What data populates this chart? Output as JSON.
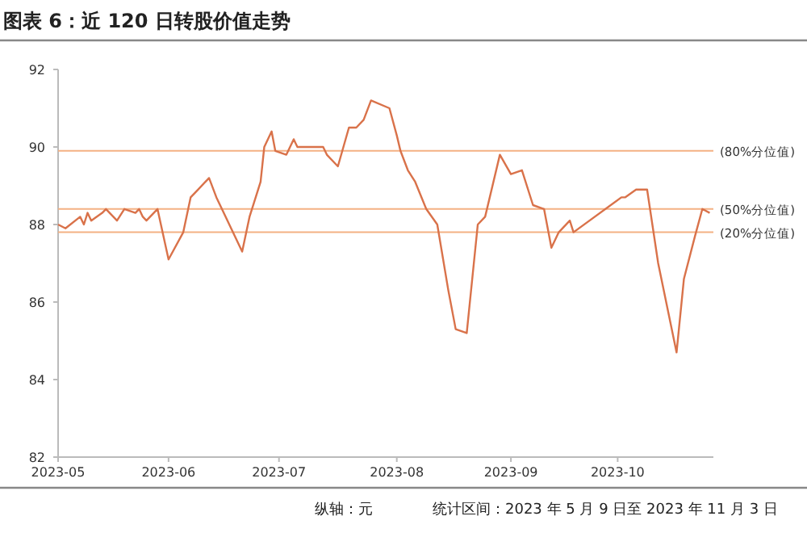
{
  "chart_data": {
    "type": "line",
    "title": "图表 6：近 120 日转股价值走势",
    "x": [
      "2023-05-09",
      "2023-05-11",
      "2023-05-15",
      "2023-05-16",
      "2023-05-17",
      "2023-05-18",
      "2023-05-21",
      "2023-05-22",
      "2023-05-25",
      "2023-05-27",
      "2023-05-30",
      "2023-05-31",
      "2023-06-01",
      "2023-06-02",
      "2023-06-05",
      "2023-06-08",
      "2023-06-12",
      "2023-06-14",
      "2023-06-16",
      "2023-06-19",
      "2023-06-21",
      "2023-06-28",
      "2023-06-30",
      "2023-07-03",
      "2023-07-04",
      "2023-07-06",
      "2023-07-07",
      "2023-07-10",
      "2023-07-12",
      "2023-07-13",
      "2023-07-20",
      "2023-07-21",
      "2023-07-24",
      "2023-07-27",
      "2023-07-29",
      "2023-07-31",
      "2023-08-02",
      "2023-08-07",
      "2023-08-09",
      "2023-08-10",
      "2023-08-12",
      "2023-08-14",
      "2023-08-17",
      "2023-08-20",
      "2023-08-23",
      "2023-08-25",
      "2023-08-28",
      "2023-08-31",
      "2023-09-02",
      "2023-09-06",
      "2023-09-09",
      "2023-09-12",
      "2023-09-15",
      "2023-09-18",
      "2023-09-20",
      "2023-09-22",
      "2023-09-25",
      "2023-09-26",
      "2023-10-09",
      "2023-10-10",
      "2023-10-13",
      "2023-10-16",
      "2023-10-19",
      "2023-10-24",
      "2023-10-26",
      "2023-10-29",
      "2023-10-31",
      "2023-11-02"
    ],
    "series": [
      {
        "color": "#d9724a",
        "values": [
          88.0,
          87.9,
          88.2,
          88.0,
          88.3,
          88.1,
          88.3,
          88.4,
          88.1,
          88.4,
          88.3,
          88.4,
          88.2,
          88.1,
          88.4,
          87.1,
          87.8,
          88.7,
          88.9,
          89.2,
          88.7,
          87.3,
          88.2,
          89.1,
          90.0,
          90.4,
          89.9,
          89.8,
          90.2,
          90.0,
          90.0,
          89.8,
          89.5,
          90.5,
          90.5,
          90.7,
          91.2,
          91.0,
          90.3,
          89.9,
          89.4,
          89.1,
          88.4,
          88.0,
          86.3,
          85.3,
          85.2,
          88.0,
          88.2,
          89.8,
          89.3,
          89.4,
          88.5,
          88.4,
          87.4,
          87.8,
          88.1,
          87.8,
          88.7,
          88.7,
          88.9,
          88.9,
          87.0,
          84.7,
          86.6,
          87.7,
          88.4,
          88.3
        ]
      }
    ],
    "xlim": [
      "2023-05-09",
      "2023-11-03"
    ],
    "xticks": [
      {
        "value": "2023-05-09",
        "label": "2023-05"
      },
      {
        "value": "2023-06-08",
        "label": "2023-06"
      },
      {
        "value": "2023-07-08",
        "label": "2023-07"
      },
      {
        "value": "2023-08-09",
        "label": "2023-08"
      },
      {
        "value": "2023-09-09",
        "label": "2023-09"
      },
      {
        "value": "2023-10-08",
        "label": "2023-10"
      }
    ],
    "ylim": [
      82,
      92
    ],
    "yticks": [
      82,
      84,
      86,
      88,
      90,
      92
    ],
    "grid": false,
    "marker": "none",
    "line_style": "solid",
    "ref_lines": [
      {
        "axis": "y",
        "value": 89.9,
        "label": "(80%分位值)",
        "color": "#f4b183"
      },
      {
        "axis": "y",
        "value": 88.4,
        "label": "(50%分位值)",
        "color": "#f4b183"
      },
      {
        "axis": "y",
        "value": 87.8,
        "label": "(20%分位值)",
        "color": "#f4b183"
      }
    ],
    "annotations": [
      "纵轴：元",
      "统计区间：2023 年 5 月 9 日至 2023 年 11 月 3 日"
    ]
  }
}
